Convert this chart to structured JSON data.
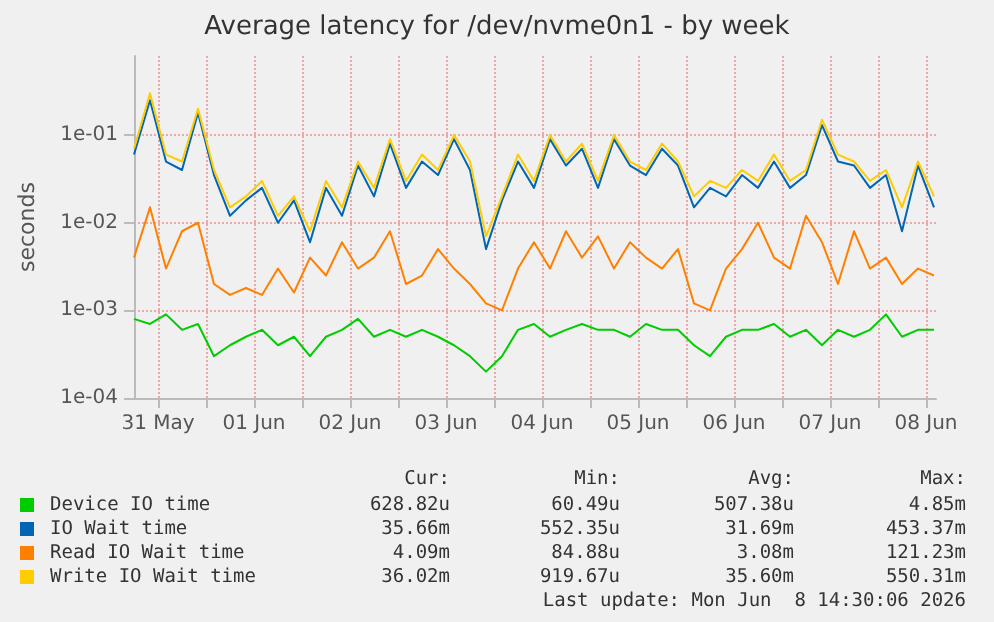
{
  "chart_data": {
    "type": "line",
    "title": "Average latency for /dev/nvme0n1 - by week",
    "ylabel": "seconds",
    "log": "y",
    "grid": true,
    "legend": "bottom",
    "marker": "none",
    "line_style": "solid",
    "x": [
      "2026-05-31T06:00",
      "2026-05-31T10:00",
      "2026-05-31T14:00",
      "2026-05-31T18:00",
      "2026-05-31T22:00",
      "2026-06-01T02:00",
      "2026-06-01T06:00",
      "2026-06-01T10:00",
      "2026-06-01T14:00",
      "2026-06-01T18:00",
      "2026-06-01T22:00",
      "2026-06-02T02:00",
      "2026-06-02T06:00",
      "2026-06-02T10:00",
      "2026-06-02T14:00",
      "2026-06-02T18:00",
      "2026-06-02T22:00",
      "2026-06-03T02:00",
      "2026-06-03T06:00",
      "2026-06-03T10:00",
      "2026-06-03T14:00",
      "2026-06-03T18:00",
      "2026-06-03T22:00",
      "2026-06-04T02:00",
      "2026-06-04T06:00",
      "2026-06-04T10:00",
      "2026-06-04T14:00",
      "2026-06-04T18:00",
      "2026-06-04T22:00",
      "2026-06-05T02:00",
      "2026-06-05T06:00",
      "2026-06-05T10:00",
      "2026-06-05T14:00",
      "2026-06-05T18:00",
      "2026-06-05T22:00",
      "2026-06-06T02:00",
      "2026-06-06T06:00",
      "2026-06-06T10:00",
      "2026-06-06T14:00",
      "2026-06-06T18:00",
      "2026-06-06T22:00",
      "2026-06-07T02:00",
      "2026-06-07T06:00",
      "2026-06-07T10:00",
      "2026-06-07T14:00",
      "2026-06-07T18:00",
      "2026-06-07T22:00",
      "2026-06-08T02:00",
      "2026-06-08T06:00",
      "2026-06-08T10:00",
      "2026-06-08T14:00"
    ],
    "xlim": [
      "2026-05-31T06:00",
      "2026-06-08T14:30"
    ],
    "xticks": [
      {
        "value": "2026-05-31T12:00",
        "label": "31 May"
      },
      {
        "value": "2026-06-01T00:00",
        "label": null
      },
      {
        "value": "2026-06-01T12:00",
        "label": "01 Jun"
      },
      {
        "value": "2026-06-02T00:00",
        "label": null
      },
      {
        "value": "2026-06-02T12:00",
        "label": "02 Jun"
      },
      {
        "value": "2026-06-03T00:00",
        "label": null
      },
      {
        "value": "2026-06-03T12:00",
        "label": "03 Jun"
      },
      {
        "value": "2026-06-04T00:00",
        "label": null
      },
      {
        "value": "2026-06-04T12:00",
        "label": "04 Jun"
      },
      {
        "value": "2026-06-05T00:00",
        "label": null
      },
      {
        "value": "2026-06-05T12:00",
        "label": "05 Jun"
      },
      {
        "value": "2026-06-06T00:00",
        "label": null
      },
      {
        "value": "2026-06-06T12:00",
        "label": "06 Jun"
      },
      {
        "value": "2026-06-07T00:00",
        "label": null
      },
      {
        "value": "2026-06-07T12:00",
        "label": "07 Jun"
      },
      {
        "value": "2026-06-08T00:00",
        "label": null
      },
      {
        "value": "2026-06-08T12:00",
        "label": "08 Jun"
      }
    ],
    "ylim": [
      0.0001,
      0.8
    ],
    "yticks": [
      {
        "value": 0.0001,
        "label": "1e-04"
      },
      {
        "value": 0.001,
        "label": "1e-03"
      },
      {
        "value": 0.01,
        "label": "1e-02"
      },
      {
        "value": 0.1,
        "label": "1e-01"
      }
    ],
    "series": [
      {
        "name": "Device IO time",
        "color": "#00cc00",
        "values": [
          0.0008,
          0.0007,
          0.0009,
          0.0006,
          0.0007,
          0.0003,
          0.0004,
          0.0005,
          0.0006,
          0.0004,
          0.0005,
          0.0003,
          0.0005,
          0.0006,
          0.0008,
          0.0005,
          0.0006,
          0.0005,
          0.0006,
          0.0005,
          0.0004,
          0.0003,
          0.0002,
          0.0003,
          0.0006,
          0.0007,
          0.0005,
          0.0006,
          0.0007,
          0.0006,
          0.0006,
          0.0005,
          0.0007,
          0.0006,
          0.0006,
          0.0004,
          0.0003,
          0.0005,
          0.0006,
          0.0006,
          0.0007,
          0.0005,
          0.0006,
          0.0004,
          0.0006,
          0.0005,
          0.0006,
          0.0009,
          0.0005,
          0.0006,
          0.0006
        ]
      },
      {
        "name": "IO Wait time",
        "color": "#0066b3",
        "values": [
          0.06,
          0.25,
          0.05,
          0.04,
          0.18,
          0.035,
          0.012,
          0.018,
          0.025,
          0.01,
          0.018,
          0.006,
          0.025,
          0.012,
          0.045,
          0.02,
          0.08,
          0.025,
          0.05,
          0.035,
          0.09,
          0.04,
          0.005,
          0.018,
          0.05,
          0.025,
          0.09,
          0.045,
          0.07,
          0.025,
          0.09,
          0.045,
          0.035,
          0.07,
          0.045,
          0.015,
          0.025,
          0.02,
          0.035,
          0.025,
          0.05,
          0.025,
          0.035,
          0.13,
          0.05,
          0.045,
          0.025,
          0.035,
          0.008,
          0.045,
          0.015
        ]
      },
      {
        "name": "Read IO Wait time",
        "color": "#ff8000",
        "values": [
          0.004,
          0.015,
          0.003,
          0.008,
          0.01,
          0.002,
          0.0015,
          0.0018,
          0.0015,
          0.003,
          0.0016,
          0.004,
          0.0025,
          0.006,
          0.003,
          0.004,
          0.008,
          0.002,
          0.0025,
          0.005,
          0.003,
          0.002,
          0.0012,
          0.001,
          0.003,
          0.006,
          0.003,
          0.008,
          0.004,
          0.007,
          0.003,
          0.006,
          0.004,
          0.003,
          0.005,
          0.0012,
          0.001,
          0.003,
          0.005,
          0.01,
          0.004,
          0.003,
          0.012,
          0.006,
          0.002,
          0.008,
          0.003,
          0.004,
          0.002,
          0.003,
          0.0025
        ]
      },
      {
        "name": "Write IO Wait time",
        "color": "#ffcc00",
        "values": [
          0.07,
          0.3,
          0.06,
          0.05,
          0.2,
          0.04,
          0.015,
          0.02,
          0.03,
          0.012,
          0.02,
          0.008,
          0.03,
          0.015,
          0.05,
          0.025,
          0.09,
          0.03,
          0.06,
          0.04,
          0.1,
          0.05,
          0.007,
          0.02,
          0.06,
          0.03,
          0.1,
          0.05,
          0.08,
          0.03,
          0.1,
          0.05,
          0.04,
          0.08,
          0.05,
          0.02,
          0.03,
          0.025,
          0.04,
          0.03,
          0.06,
          0.03,
          0.04,
          0.15,
          0.06,
          0.05,
          0.03,
          0.04,
          0.015,
          0.05,
          0.02
        ]
      }
    ],
    "annotations": [
      "Cur:",
      "Min:",
      "Avg:",
      "Max:",
      "628.82u",
      "60.49u",
      "507.38u",
      "4.85m",
      "35.66m",
      "552.35u",
      "31.69m",
      "453.37m",
      "4.09m",
      "84.88u",
      "3.08m",
      "121.23m",
      "36.02m",
      "919.67u",
      "35.60m",
      "550.31m",
      "Last update: Mon Jun  8 14:30:06 2026"
    ]
  }
}
